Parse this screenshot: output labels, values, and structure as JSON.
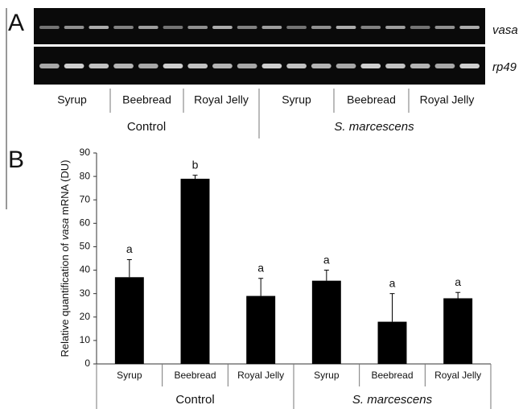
{
  "panel_a": {
    "label": "A",
    "genes": [
      "vasa",
      "rp49"
    ],
    "categories": [
      "Syrup",
      "Beebread",
      "Royal Jelly",
      "Syrup",
      "Beebread",
      "Royal Jelly"
    ],
    "groups": [
      "Control",
      "S. marcescens"
    ]
  },
  "chart_data": {
    "type": "bar",
    "panel_label": "B",
    "ylabel": [
      "Relative quantification of ",
      "vasa",
      " mRNA (DU)"
    ],
    "color": "#000000",
    "groups": [
      {
        "name": "Control",
        "categories": [
          "Syrup",
          "Beebread",
          "Royal Jelly"
        ],
        "values": [
          37,
          79,
          29
        ],
        "errors": [
          7.5,
          1.5,
          7.5
        ],
        "annotations": [
          "a",
          "b",
          "a"
        ]
      },
      {
        "name": "S. marcescens",
        "categories": [
          "Syrup",
          "Beebread",
          "Royal Jelly"
        ],
        "values": [
          35.5,
          18,
          28
        ],
        "errors": [
          4.5,
          12,
          2.5
        ],
        "annotations": [
          "a",
          "a",
          "a"
        ]
      }
    ],
    "ylim": [
      0,
      90
    ],
    "yticks": [
      0,
      10,
      20,
      30,
      40,
      50,
      60,
      70,
      80,
      90
    ]
  }
}
